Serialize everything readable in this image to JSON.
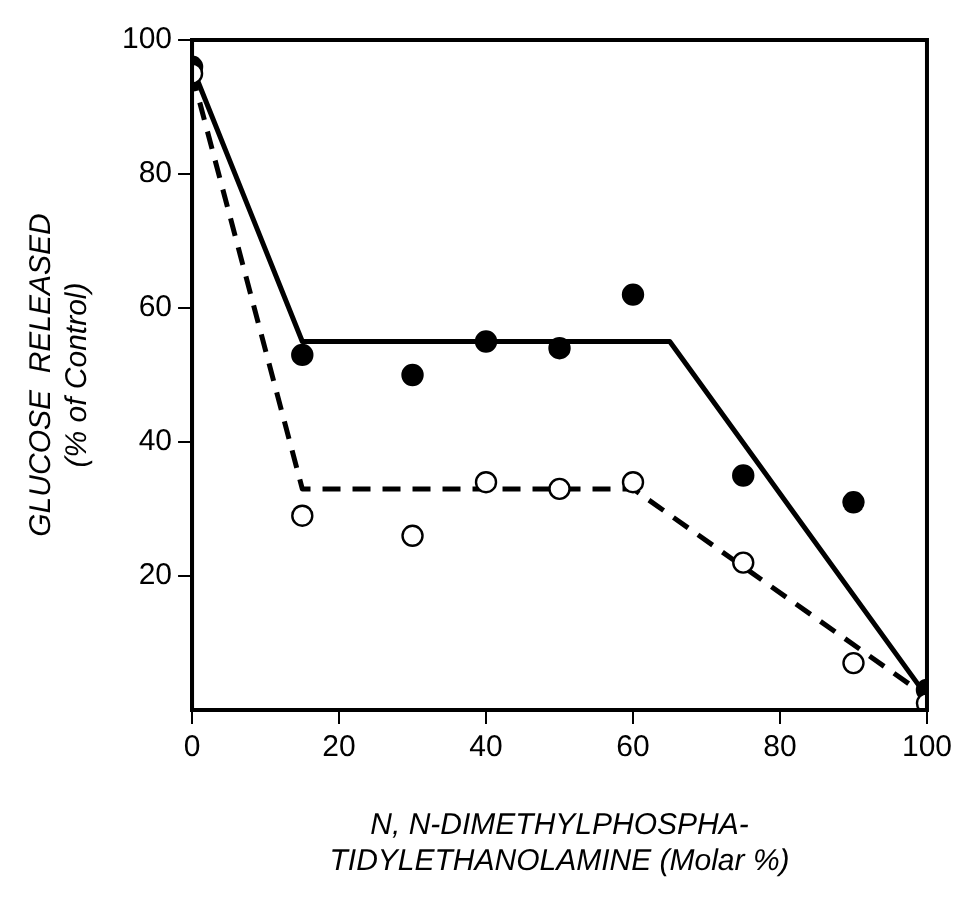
{
  "chart_data": {
    "type": "scatter",
    "xlabel": "N, N-DIMETHYLPHOSPHA-\nTIDYLETHANOLAMINE (Molar %)",
    "ylabel": "GLUCOSE  RELEASED\n(% of Control)",
    "xlim": [
      0,
      100
    ],
    "xticks": [
      0,
      20,
      40,
      60,
      80,
      100
    ],
    "ylim": [
      0,
      100
    ],
    "yticks": [
      20,
      40,
      60,
      80,
      100
    ],
    "grid": false,
    "legend": false,
    "series": [
      {
        "type": "scatter",
        "marker": "circle",
        "color": "#ffffff",
        "x": [
          0,
          15,
          30,
          40,
          50,
          60,
          75,
          90,
          100
        ],
        "values": [
          95,
          29,
          26,
          34,
          33,
          34,
          22,
          7,
          1
        ]
      },
      {
        "type": "scatter",
        "marker": "circle",
        "color": "#000000",
        "x": [
          0,
          15,
          30,
          40,
          50,
          60,
          75,
          90,
          100
        ],
        "values": [
          96,
          53,
          50,
          55,
          54,
          62,
          35,
          31,
          3
        ]
      },
      {
        "type": "line",
        "marker": "none",
        "line_style": "solid",
        "color": "#000000",
        "x": [
          0,
          15,
          65,
          100
        ],
        "values": [
          96,
          55,
          55,
          2
        ]
      },
      {
        "type": "line",
        "marker": "none",
        "line_style": "dashed",
        "color": "#000000",
        "x": [
          0,
          15,
          60,
          100
        ],
        "values": [
          95,
          33,
          33,
          2
        ]
      }
    ]
  }
}
